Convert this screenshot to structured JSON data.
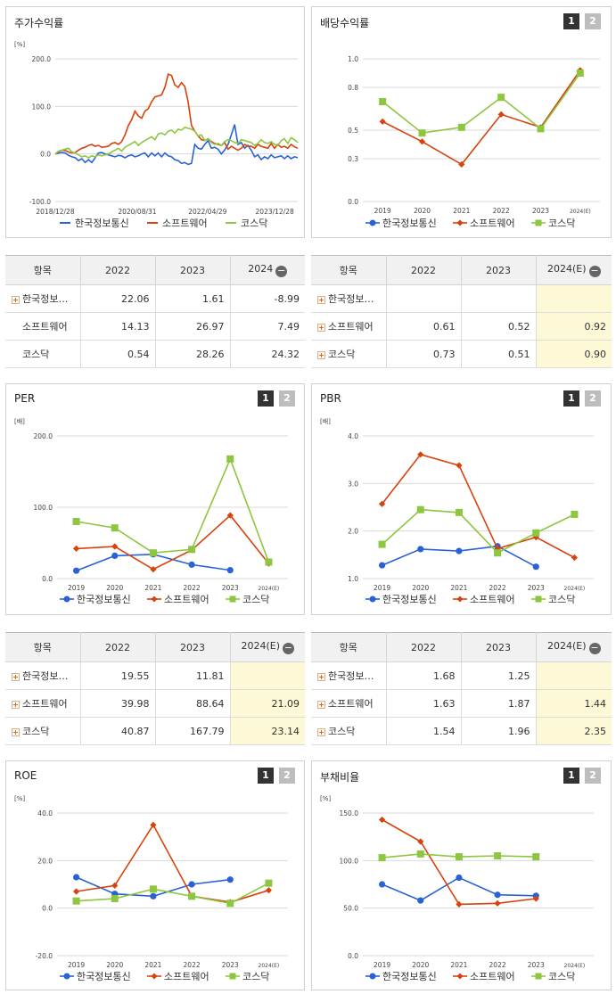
{
  "colors": {
    "s1": "#2a62d6",
    "s2": "#d8420c",
    "s3": "#8dc63f",
    "grid": "#d9d9d9",
    "est": "#fdf8d5"
  },
  "legend": [
    "한국정보통신",
    "소프트웨어",
    "코스닥"
  ],
  "pagers": {
    "p1": "1",
    "p2": "2"
  },
  "stock": {
    "title": "주가수익률",
    "unit": "[%]",
    "y_ticks": [
      "200.0",
      "100.0",
      "0.0",
      "-100.0"
    ],
    "x_ticks": [
      "2018/12/28",
      "2020/08/31",
      "2022/04/29",
      "2023/12/28"
    ]
  },
  "dividend": {
    "title": "배당수익률"
  },
  "per": {
    "title": "PER"
  },
  "pbr": {
    "title": "PBR"
  },
  "roe": {
    "title": "ROE"
  },
  "debt": {
    "title": "부채비율"
  },
  "tables": {
    "stock": {
      "headers": [
        "항목",
        "2022",
        "2023",
        "2024"
      ],
      "rows": [
        {
          "name": "한국정보…",
          "plus": true,
          "vals": [
            "22.06",
            "1.61",
            "-8.99"
          ]
        },
        {
          "name": "소프트웨어",
          "plus": false,
          "vals": [
            "14.13",
            "26.97",
            "7.49"
          ]
        },
        {
          "name": "코스닥",
          "plus": false,
          "vals": [
            "0.54",
            "28.26",
            "24.32"
          ]
        }
      ]
    },
    "dividend": {
      "headers": [
        "항목",
        "2022",
        "2023",
        "2024(E)"
      ],
      "rows": [
        {
          "name": "한국정보…",
          "plus": true,
          "vals": [
            "",
            "",
            ""
          ]
        },
        {
          "name": "소프트웨어",
          "plus": true,
          "vals": [
            "0.61",
            "0.52",
            "0.92"
          ]
        },
        {
          "name": "코스닥",
          "plus": true,
          "vals": [
            "0.73",
            "0.51",
            "0.90"
          ]
        }
      ]
    },
    "per": {
      "headers": [
        "항목",
        "2022",
        "2023",
        "2024(E)"
      ],
      "rows": [
        {
          "name": "한국정보…",
          "plus": true,
          "vals": [
            "19.55",
            "11.81",
            ""
          ]
        },
        {
          "name": "소프트웨어",
          "plus": true,
          "vals": [
            "39.98",
            "88.64",
            "21.09"
          ]
        },
        {
          "name": "코스닥",
          "plus": true,
          "vals": [
            "40.87",
            "167.79",
            "23.14"
          ]
        }
      ]
    },
    "pbr": {
      "headers": [
        "항목",
        "2022",
        "2023",
        "2024(E)"
      ],
      "rows": [
        {
          "name": "한국정보…",
          "plus": true,
          "vals": [
            "1.68",
            "1.25",
            ""
          ]
        },
        {
          "name": "소프트웨어",
          "plus": true,
          "vals": [
            "1.63",
            "1.87",
            "1.44"
          ]
        },
        {
          "name": "코스닥",
          "plus": true,
          "vals": [
            "1.54",
            "1.96",
            "2.35"
          ]
        }
      ]
    }
  },
  "chart_data": [
    {
      "type": "line",
      "title": "주가수익률",
      "ylabel": "[%]",
      "ylim": [
        -100,
        200
      ],
      "y_ticks": [
        200,
        100,
        0,
        -100
      ],
      "x_tick_labels": [
        "2018/12/28",
        "2020/08/31",
        "2022/04/29",
        "2023/12/28"
      ],
      "legend": "bottom",
      "series": [
        {
          "name": "한국정보통신",
          "values": [
            0,
            2,
            3,
            2,
            -3,
            -6,
            -8,
            -14,
            -10,
            -18,
            -12,
            -18,
            -8,
            2,
            3,
            0,
            -2,
            -4,
            -6,
            -3,
            -4,
            -8,
            -4,
            -2,
            -6,
            -4,
            0,
            2,
            -6,
            2,
            -4,
            2,
            -6,
            2,
            -4,
            -6,
            -12,
            -14,
            -20,
            -18,
            -22,
            -20,
            20,
            12,
            10,
            20,
            28,
            12,
            14,
            10,
            0,
            8,
            20,
            40,
            62,
            20,
            24,
            12,
            18,
            8,
            -6,
            -2,
            -12,
            -6,
            -10,
            -2,
            -8,
            -6,
            -4,
            -10,
            -4,
            -10,
            -6,
            -8
          ]
        },
        {
          "name": "소프트웨어",
          "values": [
            0,
            5,
            8,
            7,
            4,
            2,
            3,
            8,
            12,
            14,
            18,
            20,
            16,
            18,
            14,
            15,
            16,
            22,
            24,
            20,
            26,
            40,
            60,
            72,
            90,
            80,
            75,
            90,
            95,
            110,
            120,
            122,
            124,
            140,
            168,
            165,
            145,
            140,
            150,
            142,
            110,
            60,
            48,
            38,
            30,
            28,
            32,
            26,
            22,
            20,
            18,
            24,
            10,
            16,
            12,
            8,
            12,
            20,
            16,
            16,
            12,
            20,
            16,
            14,
            12,
            22,
            12,
            20,
            14,
            16,
            12,
            20,
            15,
            12
          ]
        },
        {
          "name": "코스닥",
          "values": [
            0,
            6,
            8,
            10,
            12,
            4,
            2,
            -2,
            -6,
            -4,
            -8,
            -4,
            -6,
            -2,
            -4,
            -2,
            0,
            4,
            8,
            12,
            6,
            14,
            18,
            22,
            26,
            18,
            24,
            28,
            32,
            36,
            30,
            42,
            44,
            40,
            48,
            50,
            44,
            52,
            50,
            56,
            54,
            52,
            48,
            38,
            40,
            28,
            32,
            24,
            20,
            22,
            18,
            26,
            30,
            28,
            24,
            22,
            30,
            28,
            26,
            24,
            18,
            22,
            30,
            24,
            22,
            26,
            20,
            18,
            28,
            32,
            22,
            34,
            30,
            24
          ]
        }
      ]
    },
    {
      "type": "line",
      "title": "배당수익률",
      "ylim": [
        0,
        1.0
      ],
      "y_ticks": [
        1.0,
        0.8,
        0.5,
        0.3,
        0.0
      ],
      "x": [
        "2019",
        "2020",
        "2021",
        "2022",
        "2023",
        "2024(E)"
      ],
      "legend": "bottom",
      "series": [
        {
          "name": "한국정보통신",
          "values": [
            null,
            null,
            null,
            null,
            null,
            null
          ]
        },
        {
          "name": "소프트웨어",
          "values": [
            0.56,
            0.42,
            0.26,
            0.61,
            0.52,
            0.92
          ]
        },
        {
          "name": "코스닥",
          "values": [
            0.7,
            0.48,
            0.52,
            0.73,
            0.51,
            0.9
          ]
        }
      ]
    },
    {
      "type": "line",
      "title": "PER",
      "ylabel": "[배]",
      "ylim": [
        0,
        200
      ],
      "y_ticks": [
        200.0,
        100.0,
        0.0
      ],
      "x": [
        "2019",
        "2020",
        "2021",
        "2022",
        "2023",
        "2024(E)"
      ],
      "legend": "bottom",
      "series": [
        {
          "name": "한국정보통신",
          "values": [
            11,
            32,
            34,
            19.55,
            11.81,
            null
          ]
        },
        {
          "name": "소프트웨어",
          "values": [
            42,
            45,
            13,
            39.98,
            88.64,
            21.09
          ]
        },
        {
          "name": "코스닥",
          "values": [
            80,
            71,
            36,
            40.87,
            167.79,
            23.14
          ]
        }
      ]
    },
    {
      "type": "line",
      "title": "PBR",
      "ylabel": "[배]",
      "ylim": [
        1.0,
        4.0
      ],
      "y_ticks": [
        4.0,
        3.0,
        2.0,
        1.0
      ],
      "x": [
        "2019",
        "2020",
        "2021",
        "2022",
        "2023",
        "2024(E)"
      ],
      "legend": "bottom",
      "series": [
        {
          "name": "한국정보통신",
          "values": [
            1.28,
            1.62,
            1.58,
            1.68,
            1.25,
            null
          ]
        },
        {
          "name": "소프트웨어",
          "values": [
            2.57,
            3.61,
            3.38,
            1.63,
            1.87,
            1.44
          ]
        },
        {
          "name": "코스닥",
          "values": [
            1.72,
            2.45,
            2.39,
            1.54,
            1.96,
            2.35
          ]
        }
      ]
    },
    {
      "type": "line",
      "title": "ROE",
      "ylabel": "[%]",
      "ylim": [
        -20,
        40
      ],
      "y_ticks": [
        40.0,
        20.0,
        0.0,
        -20.0
      ],
      "x": [
        "2019",
        "2020",
        "2021",
        "2022",
        "2023",
        "2024(E)"
      ],
      "legend": "bottom",
      "series": [
        {
          "name": "한국정보통신",
          "values": [
            13,
            6,
            5,
            10,
            12,
            null
          ]
        },
        {
          "name": "소프트웨어",
          "values": [
            7,
            9.5,
            35,
            5,
            2.5,
            7.5
          ]
        },
        {
          "name": "코스닥",
          "values": [
            3,
            4,
            8,
            5,
            2,
            10.5
          ]
        }
      ]
    },
    {
      "type": "line",
      "title": "부채비율",
      "ylabel": "[%]",
      "ylim": [
        0,
        150
      ],
      "y_ticks": [
        150.0,
        100.0,
        50.0,
        0.0
      ],
      "x": [
        "2019",
        "2020",
        "2021",
        "2022",
        "2023",
        "2024(E)"
      ],
      "legend": "bottom",
      "series": [
        {
          "name": "한국정보통신",
          "values": [
            75,
            58,
            82,
            64,
            63,
            null
          ]
        },
        {
          "name": "소프트웨어",
          "values": [
            143,
            120,
            54,
            55,
            60,
            null
          ]
        },
        {
          "name": "코스닥",
          "values": [
            103,
            107,
            104,
            105,
            104,
            null
          ]
        }
      ]
    }
  ]
}
